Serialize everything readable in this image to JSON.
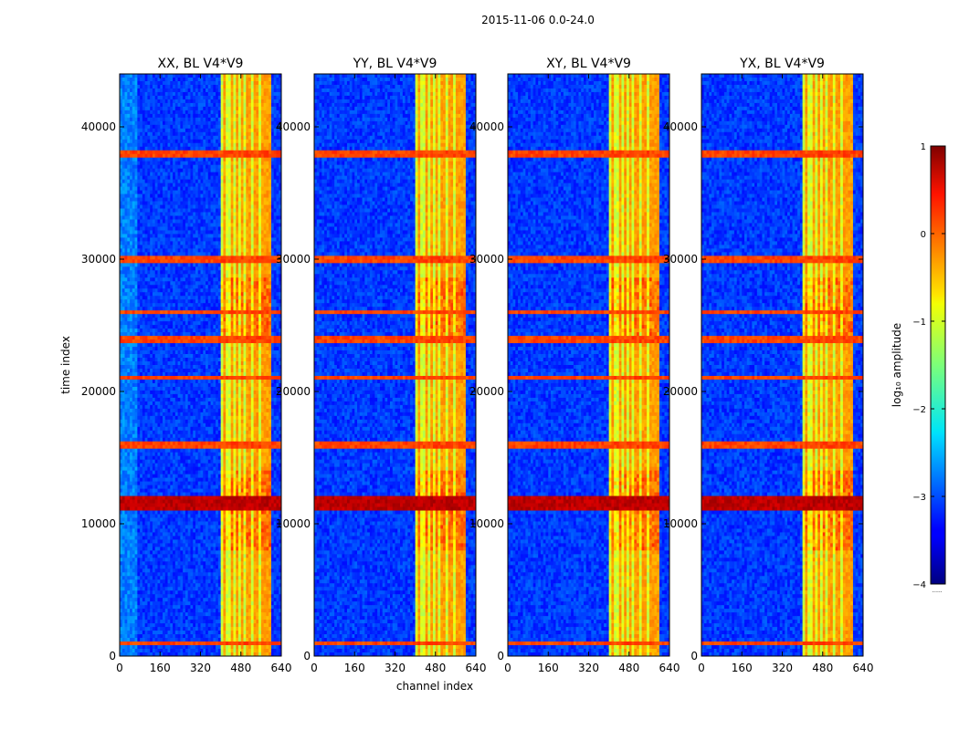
{
  "figure_title": "2015-11-06 0.0-24.0",
  "chart_data": {
    "type": "heatmap",
    "title": "2015-11-06 0.0-24.0",
    "xlabel": "channel index",
    "ylabel": "time index",
    "xlim": [
      0,
      640
    ],
    "ylim": [
      0,
      44000
    ],
    "xticks": [
      0,
      160,
      320,
      480,
      640
    ],
    "yticks": [
      0,
      10000,
      20000,
      30000,
      40000
    ],
    "x_tick_labels": [
      "0",
      "160",
      "320",
      "480",
      "640"
    ],
    "y_tick_labels": [
      "0",
      "10000",
      "20000",
      "30000",
      "40000"
    ],
    "colormap": "jet",
    "panels": [
      {
        "title": "XX, BL V4*V9",
        "polarization": "XX",
        "baseline": "V4*V9"
      },
      {
        "title": "YY, BL V4*V9",
        "polarization": "YY",
        "baseline": "V4*V9"
      },
      {
        "title": "XY, BL V4*V9",
        "polarization": "XY",
        "baseline": "V4*V9"
      },
      {
        "title": "YX, BL V4*V9",
        "polarization": "YX",
        "baseline": "V4*V9"
      }
    ],
    "colorbar": {
      "label": "log₁₀ amplitude",
      "range": [
        -4,
        1
      ],
      "ticks": [
        1,
        0,
        -1,
        -2,
        -3,
        -4
      ],
      "tick_labels": [
        "1",
        "0",
        "−1",
        "−2",
        "−3",
        "−4"
      ],
      "bottom_note": "......"
    },
    "bright_channel_band": [
      405,
      600
    ],
    "strong_rfi_time_band": [
      11000,
      12200
    ],
    "repeated_rfi_time_rows": [
      1000,
      16000,
      21000,
      24000,
      26000,
      30000,
      38000
    ]
  }
}
